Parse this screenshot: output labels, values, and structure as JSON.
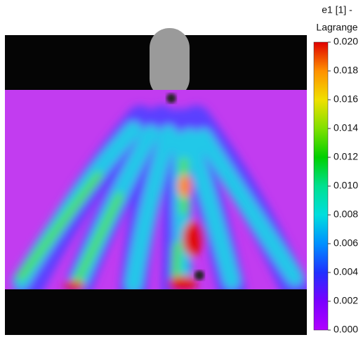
{
  "colorbar": {
    "title_lines": [
      "e1 [1] -",
      "Lagrange"
    ],
    "lim": [
      0,
      0.02
    ],
    "ticks": [
      {
        "value": 0,
        "label": "0.000"
      },
      {
        "value": 0.002,
        "label": "0.002"
      },
      {
        "value": 0.004,
        "label": "0.004"
      },
      {
        "value": 0.006,
        "label": "0.006"
      },
      {
        "value": 0.008,
        "label": "0.008"
      },
      {
        "value": 0.01,
        "label": "0.010"
      },
      {
        "value": 0.012,
        "label": "0.012"
      },
      {
        "value": 0.014,
        "label": "0.014"
      },
      {
        "value": 0.016,
        "label": "0.016"
      },
      {
        "value": 0.018,
        "label": "0.018"
      },
      {
        "value": 0.02,
        "label": "0.020"
      }
    ]
  }
}
